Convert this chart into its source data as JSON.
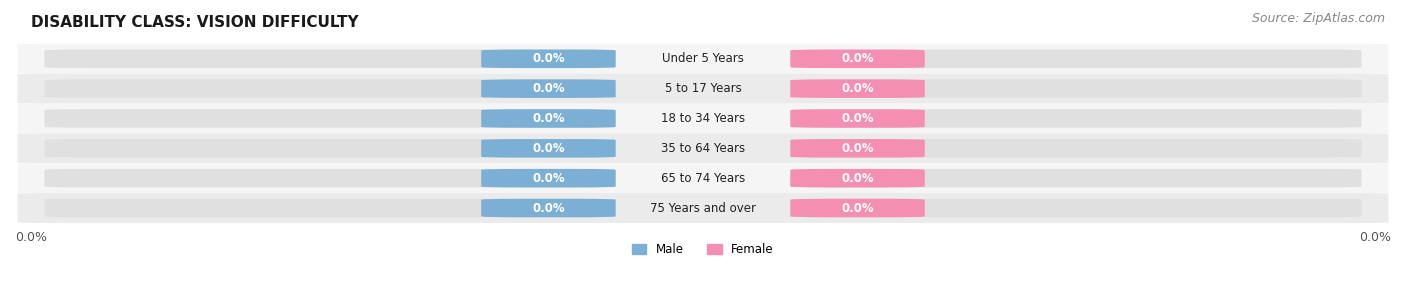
{
  "title": "DISABILITY CLASS: VISION DIFFICULTY",
  "source": "Source: ZipAtlas.com",
  "categories": [
    "Under 5 Years",
    "5 to 17 Years",
    "18 to 34 Years",
    "35 to 64 Years",
    "65 to 74 Years",
    "75 Years and over"
  ],
  "male_values": [
    0.0,
    0.0,
    0.0,
    0.0,
    0.0,
    0.0
  ],
  "female_values": [
    0.0,
    0.0,
    0.0,
    0.0,
    0.0,
    0.0
  ],
  "male_color": "#7bafd4",
  "female_color": "#f48fb1",
  "male_label": "Male",
  "female_label": "Female",
  "title_fontsize": 11,
  "label_fontsize": 8.5,
  "tick_fontsize": 9,
  "source_fontsize": 9,
  "background_color": "#ffffff",
  "track_bg_color": "#e0e0e0",
  "row_colors": [
    "#f5f5f5",
    "#ebebeb"
  ]
}
